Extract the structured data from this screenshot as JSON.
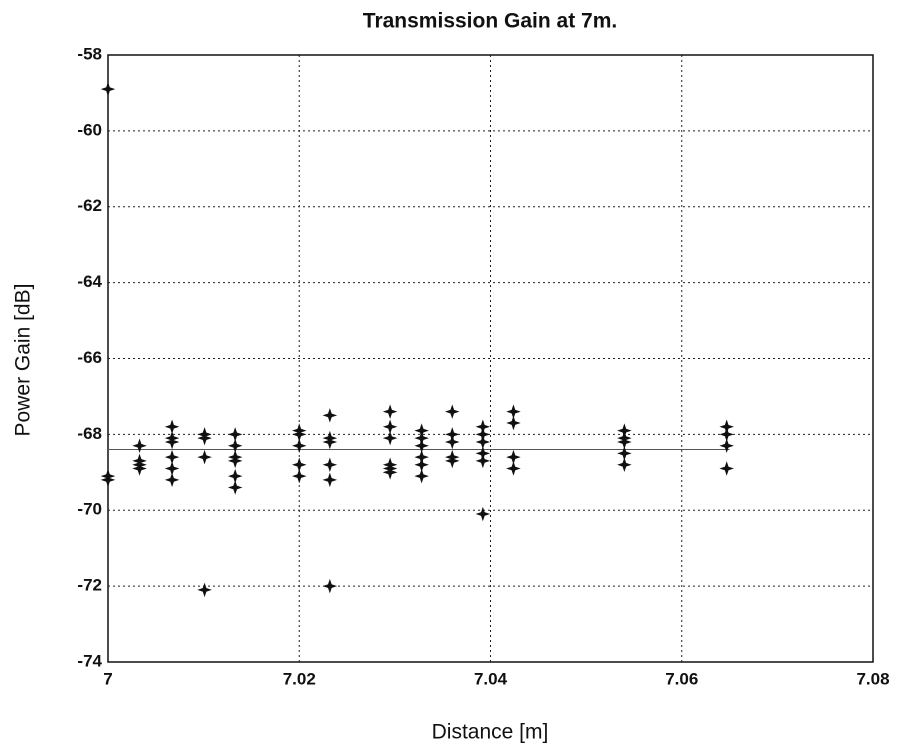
{
  "chart_data": {
    "type": "scatter",
    "title": "Transmission Gain at 7m.",
    "xlabel": "Distance [m]",
    "ylabel": "Power Gain [dB]",
    "xlim": [
      7,
      7.08
    ],
    "ylim": [
      -74,
      -58
    ],
    "xticks": [
      7,
      7.02,
      7.04,
      7.06,
      7.08
    ],
    "yticks": [
      -58,
      -60,
      -62,
      -64,
      -66,
      -68,
      -70,
      -72,
      -74
    ],
    "grid": true,
    "color": "#111111",
    "x": [
      7,
      7,
      7,
      7.0033,
      7.0033,
      7.0033,
      7.0033,
      7.0067,
      7.0067,
      7.0067,
      7.0067,
      7.0067,
      7.0067,
      7.0101,
      7.0101,
      7.0101,
      7.0101,
      7.0133,
      7.0133,
      7.0133,
      7.0133,
      7.0133,
      7.0133,
      7.02,
      7.02,
      7.02,
      7.02,
      7.02,
      7.0232,
      7.0232,
      7.0232,
      7.0232,
      7.0232,
      7.0232,
      7.0295,
      7.0295,
      7.0295,
      7.0295,
      7.0295,
      7.0295,
      7.0328,
      7.0328,
      7.0328,
      7.0328,
      7.0328,
      7.0328,
      7.036,
      7.036,
      7.036,
      7.036,
      7.036,
      7.0392,
      7.0392,
      7.0392,
      7.0392,
      7.0392,
      7.0392,
      7.0424,
      7.0424,
      7.0424,
      7.0424,
      7.054,
      7.054,
      7.054,
      7.054,
      7.054,
      7.0647,
      7.0647,
      7.0647,
      7.0647
    ],
    "values": [
      -58.9,
      -69.1,
      -69.2,
      -68.3,
      -68.7,
      -68.9,
      -68.8,
      -67.8,
      -68.1,
      -68.2,
      -68.6,
      -68.9,
      -69.2,
      -68.0,
      -68.1,
      -68.6,
      -72.1,
      -68.0,
      -68.3,
      -68.6,
      -68.7,
      -69.1,
      -69.4,
      -67.9,
      -68.0,
      -68.3,
      -68.8,
      -69.1,
      -67.5,
      -68.1,
      -68.2,
      -68.8,
      -69.2,
      -72.0,
      -67.4,
      -67.8,
      -68.1,
      -68.8,
      -68.9,
      -69.0,
      -67.9,
      -68.1,
      -68.3,
      -68.6,
      -68.8,
      -69.1,
      -67.4,
      -68.0,
      -68.2,
      -68.6,
      -68.7,
      -67.8,
      -68.0,
      -68.2,
      -68.5,
      -68.7,
      -70.1,
      -67.4,
      -67.7,
      -68.6,
      -68.9,
      -67.9,
      -68.1,
      -68.2,
      -68.5,
      -68.8,
      -67.8,
      -68.0,
      -68.3,
      -68.9
    ],
    "reference_line": {
      "y": -68.4,
      "x": [
        7,
        7.065
      ]
    }
  }
}
